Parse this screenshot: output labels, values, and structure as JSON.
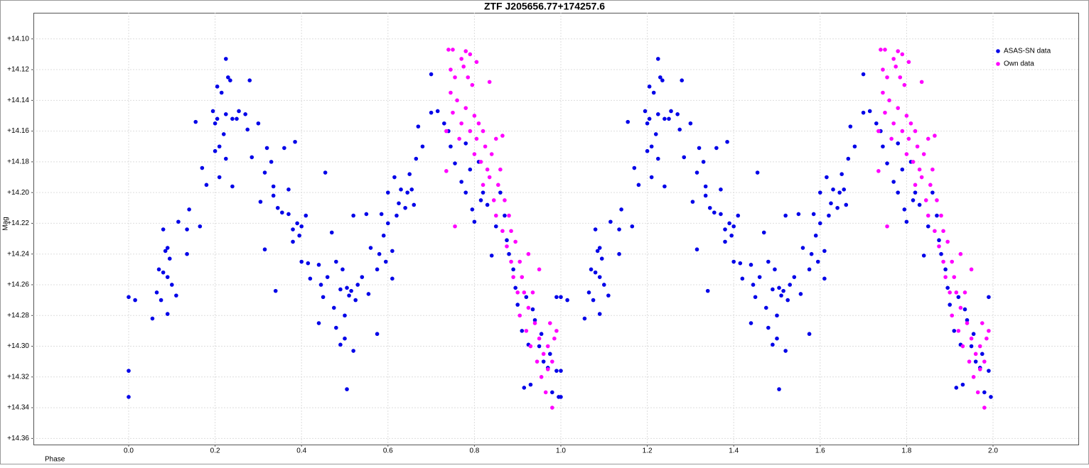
{
  "chart_data": {
    "type": "scatter",
    "title": "ZTF J205656.77+174257.6",
    "x_label": "Phase",
    "y_label": "Mag",
    "xlim": [
      -0.2204,
      2.1974
    ],
    "ylim": [
      14.083,
      14.364
    ],
    "y_inverted": true,
    "grid": true,
    "legend": "upper right",
    "xticks": [
      {
        "value": 0,
        "label": "0.0"
      },
      0.2,
      0.4,
      0.6,
      0.8,
      {
        "value": 1,
        "label": "1.0"
      },
      1.2,
      1.4,
      1.6,
      1.8,
      {
        "value": 2,
        "label": "2.0"
      }
    ],
    "yticks": [
      {
        "value": 14.1,
        "label": "+14.10"
      },
      {
        "value": 14.12,
        "label": "+14.12"
      },
      {
        "value": 14.14,
        "label": "+14.14"
      },
      {
        "value": 14.16,
        "label": "+14.16"
      },
      {
        "value": 14.18,
        "label": "+14.18"
      },
      {
        "value": 14.2,
        "label": "+14.20"
      },
      {
        "value": 14.22,
        "label": "+14.22"
      },
      {
        "value": 14.24,
        "label": "+14.24"
      },
      {
        "value": 14.26,
        "label": "+14.26"
      },
      {
        "value": 14.28,
        "label": "+14.28"
      },
      {
        "value": 14.3,
        "label": "+14.30"
      },
      {
        "value": 14.32,
        "label": "+14.32"
      },
      {
        "value": 14.34,
        "label": "+14.34"
      },
      {
        "value": 14.36,
        "label": "+14.36"
      }
    ],
    "series": [
      {
        "name": "ASAS-SN data",
        "color": "#0000e8",
        "x": [
          0,
          0,
          0,
          0.015,
          0.055,
          0.065,
          0.07,
          0.075,
          0.08,
          0.08,
          0.085,
          0.09,
          0.09,
          0.09,
          0.095,
          0.1,
          0.11,
          0.115,
          0.135,
          0.135,
          0.14,
          0.155,
          0.165,
          0.17,
          0.18,
          0.195,
          0.2,
          0.2,
          0.205,
          0.205,
          0.21,
          0.21,
          0.215,
          0.22,
          0.225,
          0.225,
          0.225,
          0.23,
          0.235,
          0.24,
          0.24,
          0.25,
          0.255,
          0.27,
          0.275,
          0.28,
          0.285,
          0.3,
          0.305,
          0.315,
          0.315,
          0.32,
          0.33,
          0.335,
          0.335,
          0.34,
          0.345,
          0.355,
          0.36,
          0.37,
          0.37,
          0.38,
          0.38,
          0.385,
          0.39,
          0.395,
          0.4,
          0.4,
          0.41,
          0.415,
          0.42,
          0.44,
          0.44,
          0.445,
          0.45,
          0.455,
          0.46,
          0.47,
          0.475,
          0.48,
          0.48,
          0.49,
          0.49,
          0.495,
          0.5,
          0.5,
          0.505,
          0.505,
          0.51,
          0.515,
          0.52,
          0.52,
          0.525,
          0.53,
          0.54,
          0.55,
          0.555,
          0.56,
          0.575,
          0.575,
          0.58,
          0.585,
          0.59,
          0.595,
          0.6,
          0.6,
          0.61,
          0.61,
          0.615,
          0.62,
          0.625,
          0.63,
          0.64,
          0.645,
          0.65,
          0.655,
          0.66,
          0.665,
          0.67,
          0.68,
          0.7,
          0.7,
          0.715,
          0.73,
          0.74,
          0.745,
          0.755,
          0.77,
          0.78,
          0.78,
          0.79,
          0.795,
          0.8,
          0.81,
          0.815,
          0.82,
          0.83,
          0.84,
          0.85,
          0.86,
          0.87,
          0.875,
          0.88,
          0.89,
          0.895,
          0.9,
          0.91,
          0.915,
          0.92,
          0.925,
          0.93,
          0.935,
          0.94,
          0.95,
          0.955,
          0.96,
          0.97,
          0.975,
          0.98,
          0.99,
          0.99,
          0.995,
          1,
          1,
          1,
          1.015,
          1.055,
          1.065,
          1.07,
          1.075,
          1.08,
          1.08,
          1.085,
          1.09,
          1.09,
          1.09,
          1.095,
          1.1,
          1.11,
          1.115,
          1.135,
          1.135,
          1.14,
          1.155,
          1.165,
          1.17,
          1.18,
          1.195,
          1.2,
          1.2,
          1.205,
          1.205,
          1.21,
          1.21,
          1.215,
          1.22,
          1.225,
          1.225,
          1.225,
          1.23,
          1.235,
          1.24,
          1.24,
          1.25,
          1.255,
          1.27,
          1.275,
          1.28,
          1.285,
          1.3,
          1.305,
          1.315,
          1.315,
          1.32,
          1.33,
          1.335,
          1.335,
          1.34,
          1.345,
          1.355,
          1.36,
          1.37,
          1.37,
          1.38,
          1.38,
          1.385,
          1.39,
          1.395,
          1.4,
          1.4,
          1.41,
          1.415,
          1.42,
          1.44,
          1.44,
          1.445,
          1.45,
          1.455,
          1.46,
          1.47,
          1.475,
          1.48,
          1.48,
          1.49,
          1.49,
          1.495,
          1.5,
          1.5,
          1.505,
          1.505,
          1.51,
          1.515,
          1.52,
          1.52,
          1.525,
          1.53,
          1.54,
          1.55,
          1.555,
          1.56,
          1.575,
          1.575,
          1.58,
          1.585,
          1.59,
          1.595,
          1.6,
          1.6,
          1.61,
          1.61,
          1.615,
          1.62,
          1.625,
          1.63,
          1.64,
          1.645,
          1.65,
          1.655,
          1.66,
          1.665,
          1.67,
          1.68,
          1.7,
          1.7,
          1.715,
          1.73,
          1.74,
          1.745,
          1.755,
          1.77,
          1.78,
          1.78,
          1.79,
          1.795,
          1.8,
          1.81,
          1.815,
          1.82,
          1.83,
          1.84,
          1.85,
          1.86,
          1.87,
          1.875,
          1.88,
          1.89,
          1.895,
          1.9,
          1.91,
          1.915,
          1.92,
          1.925,
          1.93,
          1.935,
          1.94,
          1.95,
          1.955,
          1.96,
          1.97,
          1.975,
          1.98,
          1.99,
          1.99,
          1.995
        ],
        "values": [
          14.268,
          14.316,
          14.333,
          14.27,
          14.282,
          14.265,
          14.25,
          14.27,
          14.224,
          14.252,
          14.238,
          14.236,
          14.255,
          14.279,
          14.243,
          14.26,
          14.267,
          14.219,
          14.24,
          14.224,
          14.211,
          14.154,
          14.222,
          14.184,
          14.195,
          14.147,
          14.173,
          14.155,
          14.131,
          14.152,
          14.17,
          14.19,
          14.135,
          14.162,
          14.113,
          14.149,
          14.178,
          14.125,
          14.127,
          14.196,
          14.152,
          14.152,
          14.147,
          14.149,
          14.159,
          14.127,
          14.177,
          14.155,
          14.206,
          14.187,
          14.237,
          14.171,
          14.18,
          14.196,
          14.202,
          14.264,
          14.21,
          14.213,
          14.171,
          14.214,
          14.198,
          14.232,
          14.224,
          14.167,
          14.22,
          14.228,
          14.222,
          14.245,
          14.215,
          14.246,
          14.256,
          14.247,
          14.285,
          14.26,
          14.268,
          14.187,
          14.255,
          14.226,
          14.275,
          14.245,
          14.288,
          14.263,
          14.299,
          14.25,
          14.295,
          14.28,
          14.328,
          14.262,
          14.267,
          14.264,
          14.303,
          14.215,
          14.27,
          14.26,
          14.255,
          14.214,
          14.266,
          14.236,
          14.292,
          14.25,
          14.24,
          14.214,
          14.228,
          14.245,
          14.22,
          14.2,
          14.238,
          14.256,
          14.19,
          14.215,
          14.207,
          14.198,
          14.21,
          14.2,
          14.188,
          14.198,
          14.208,
          14.178,
          14.157,
          14.17,
          14.148,
          14.123,
          14.147,
          14.155,
          14.16,
          14.17,
          14.181,
          14.193,
          14.2,
          14.168,
          14.185,
          14.211,
          14.219,
          14.18,
          14.205,
          14.2,
          14.208,
          14.241,
          14.222,
          14.2,
          14.215,
          14.231,
          14.24,
          14.25,
          14.262,
          14.273,
          14.29,
          14.327,
          14.268,
          14.299,
          14.325,
          14.276,
          14.283,
          14.3,
          14.292,
          14.31,
          14.314,
          14.305,
          14.33,
          14.316,
          14.268,
          14.333,
          14.268,
          14.316,
          14.333,
          14.27,
          14.282,
          14.265,
          14.25,
          14.27,
          14.224,
          14.252,
          14.238,
          14.236,
          14.255,
          14.279,
          14.243,
          14.26,
          14.267,
          14.219,
          14.24,
          14.224,
          14.211,
          14.154,
          14.222,
          14.184,
          14.195,
          14.147,
          14.173,
          14.155,
          14.131,
          14.152,
          14.17,
          14.19,
          14.135,
          14.162,
          14.113,
          14.149,
          14.178,
          14.125,
          14.127,
          14.196,
          14.152,
          14.152,
          14.147,
          14.149,
          14.159,
          14.127,
          14.177,
          14.155,
          14.206,
          14.187,
          14.237,
          14.171,
          14.18,
          14.196,
          14.202,
          14.264,
          14.21,
          14.213,
          14.171,
          14.214,
          14.198,
          14.232,
          14.224,
          14.167,
          14.22,
          14.228,
          14.222,
          14.245,
          14.215,
          14.246,
          14.256,
          14.247,
          14.285,
          14.26,
          14.268,
          14.187,
          14.255,
          14.226,
          14.275,
          14.245,
          14.288,
          14.263,
          14.299,
          14.25,
          14.295,
          14.28,
          14.328,
          14.262,
          14.267,
          14.264,
          14.303,
          14.215,
          14.27,
          14.26,
          14.255,
          14.214,
          14.266,
          14.236,
          14.292,
          14.25,
          14.24,
          14.214,
          14.228,
          14.245,
          14.22,
          14.2,
          14.238,
          14.256,
          14.19,
          14.215,
          14.207,
          14.198,
          14.21,
          14.2,
          14.188,
          14.198,
          14.208,
          14.178,
          14.157,
          14.17,
          14.148,
          14.123,
          14.147,
          14.155,
          14.16,
          14.17,
          14.181,
          14.193,
          14.2,
          14.168,
          14.185,
          14.211,
          14.219,
          14.18,
          14.205,
          14.2,
          14.208,
          14.241,
          14.222,
          14.2,
          14.215,
          14.231,
          14.24,
          14.25,
          14.262,
          14.273,
          14.29,
          14.327,
          14.268,
          14.299,
          14.325,
          14.276,
          14.283,
          14.3,
          14.292,
          14.31,
          14.314,
          14.305,
          14.33,
          14.316,
          14.268,
          14.333
        ]
      },
      {
        "name": "Own data",
        "color": "#ff00ff",
        "x": [
          0.735,
          0.735,
          0.74,
          0.745,
          0.745,
          0.75,
          0.75,
          0.755,
          0.755,
          0.76,
          0.765,
          0.77,
          0.77,
          0.775,
          0.78,
          0.78,
          0.785,
          0.79,
          0.79,
          0.795,
          0.8,
          0.8,
          0.805,
          0.805,
          0.81,
          0.815,
          0.82,
          0.82,
          0.825,
          0.83,
          0.835,
          0.835,
          0.84,
          0.845,
          0.85,
          0.85,
          0.855,
          0.86,
          0.865,
          0.865,
          0.87,
          0.875,
          0.88,
          0.885,
          0.885,
          0.89,
          0.895,
          0.9,
          0.905,
          0.905,
          0.91,
          0.915,
          0.92,
          0.925,
          0.925,
          0.93,
          0.935,
          0.94,
          0.945,
          0.95,
          0.95,
          0.955,
          0.96,
          0.965,
          0.97,
          0.97,
          0.975,
          0.98,
          0.98,
          0.985,
          0.99,
          1.735,
          1.735,
          1.74,
          1.745,
          1.745,
          1.75,
          1.75,
          1.755,
          1.755,
          1.76,
          1.765,
          1.77,
          1.77,
          1.775,
          1.78,
          1.78,
          1.785,
          1.79,
          1.79,
          1.795,
          1.8,
          1.8,
          1.805,
          1.805,
          1.81,
          1.815,
          1.82,
          1.82,
          1.825,
          1.83,
          1.835,
          1.835,
          1.84,
          1.845,
          1.85,
          1.85,
          1.855,
          1.86,
          1.865,
          1.865,
          1.87,
          1.875,
          1.88,
          1.885,
          1.885,
          1.89,
          1.895,
          1.9,
          1.905,
          1.905,
          1.91,
          1.915,
          1.92,
          1.925,
          1.925,
          1.93,
          1.935,
          1.94,
          1.945,
          1.95,
          1.95,
          1.955,
          1.96,
          1.965,
          1.97,
          1.97,
          1.975,
          1.98,
          1.98,
          1.985,
          1.99
        ],
        "values": [
          14.186,
          14.16,
          14.107,
          14.12,
          14.135,
          14.107,
          14.148,
          14.222,
          14.125,
          14.14,
          14.165,
          14.155,
          14.113,
          14.118,
          14.108,
          14.145,
          14.125,
          14.11,
          14.16,
          14.13,
          14.15,
          14.175,
          14.115,
          14.165,
          14.155,
          14.18,
          14.16,
          14.195,
          14.17,
          14.185,
          14.128,
          14.19,
          14.175,
          14.205,
          14.165,
          14.215,
          14.195,
          14.185,
          14.225,
          14.163,
          14.205,
          14.235,
          14.215,
          14.245,
          14.225,
          14.255,
          14.232,
          14.265,
          14.245,
          14.28,
          14.255,
          14.265,
          14.29,
          14.24,
          14.275,
          14.3,
          14.265,
          14.285,
          14.31,
          14.25,
          14.295,
          14.32,
          14.305,
          14.33,
          14.3,
          14.315,
          14.285,
          14.34,
          14.31,
          14.295,
          14.29,
          14.186,
          14.16,
          14.107,
          14.12,
          14.135,
          14.107,
          14.148,
          14.222,
          14.125,
          14.14,
          14.165,
          14.155,
          14.113,
          14.118,
          14.108,
          14.145,
          14.125,
          14.11,
          14.16,
          14.13,
          14.15,
          14.175,
          14.115,
          14.165,
          14.155,
          14.18,
          14.16,
          14.195,
          14.17,
          14.185,
          14.128,
          14.19,
          14.175,
          14.205,
          14.165,
          14.215,
          14.195,
          14.185,
          14.225,
          14.163,
          14.205,
          14.235,
          14.215,
          14.245,
          14.225,
          14.255,
          14.232,
          14.265,
          14.245,
          14.28,
          14.255,
          14.265,
          14.29,
          14.24,
          14.275,
          14.3,
          14.265,
          14.285,
          14.31,
          14.25,
          14.295,
          14.32,
          14.305,
          14.33,
          14.3,
          14.315,
          14.285,
          14.34,
          14.31,
          14.295,
          14.29
        ]
      }
    ]
  }
}
